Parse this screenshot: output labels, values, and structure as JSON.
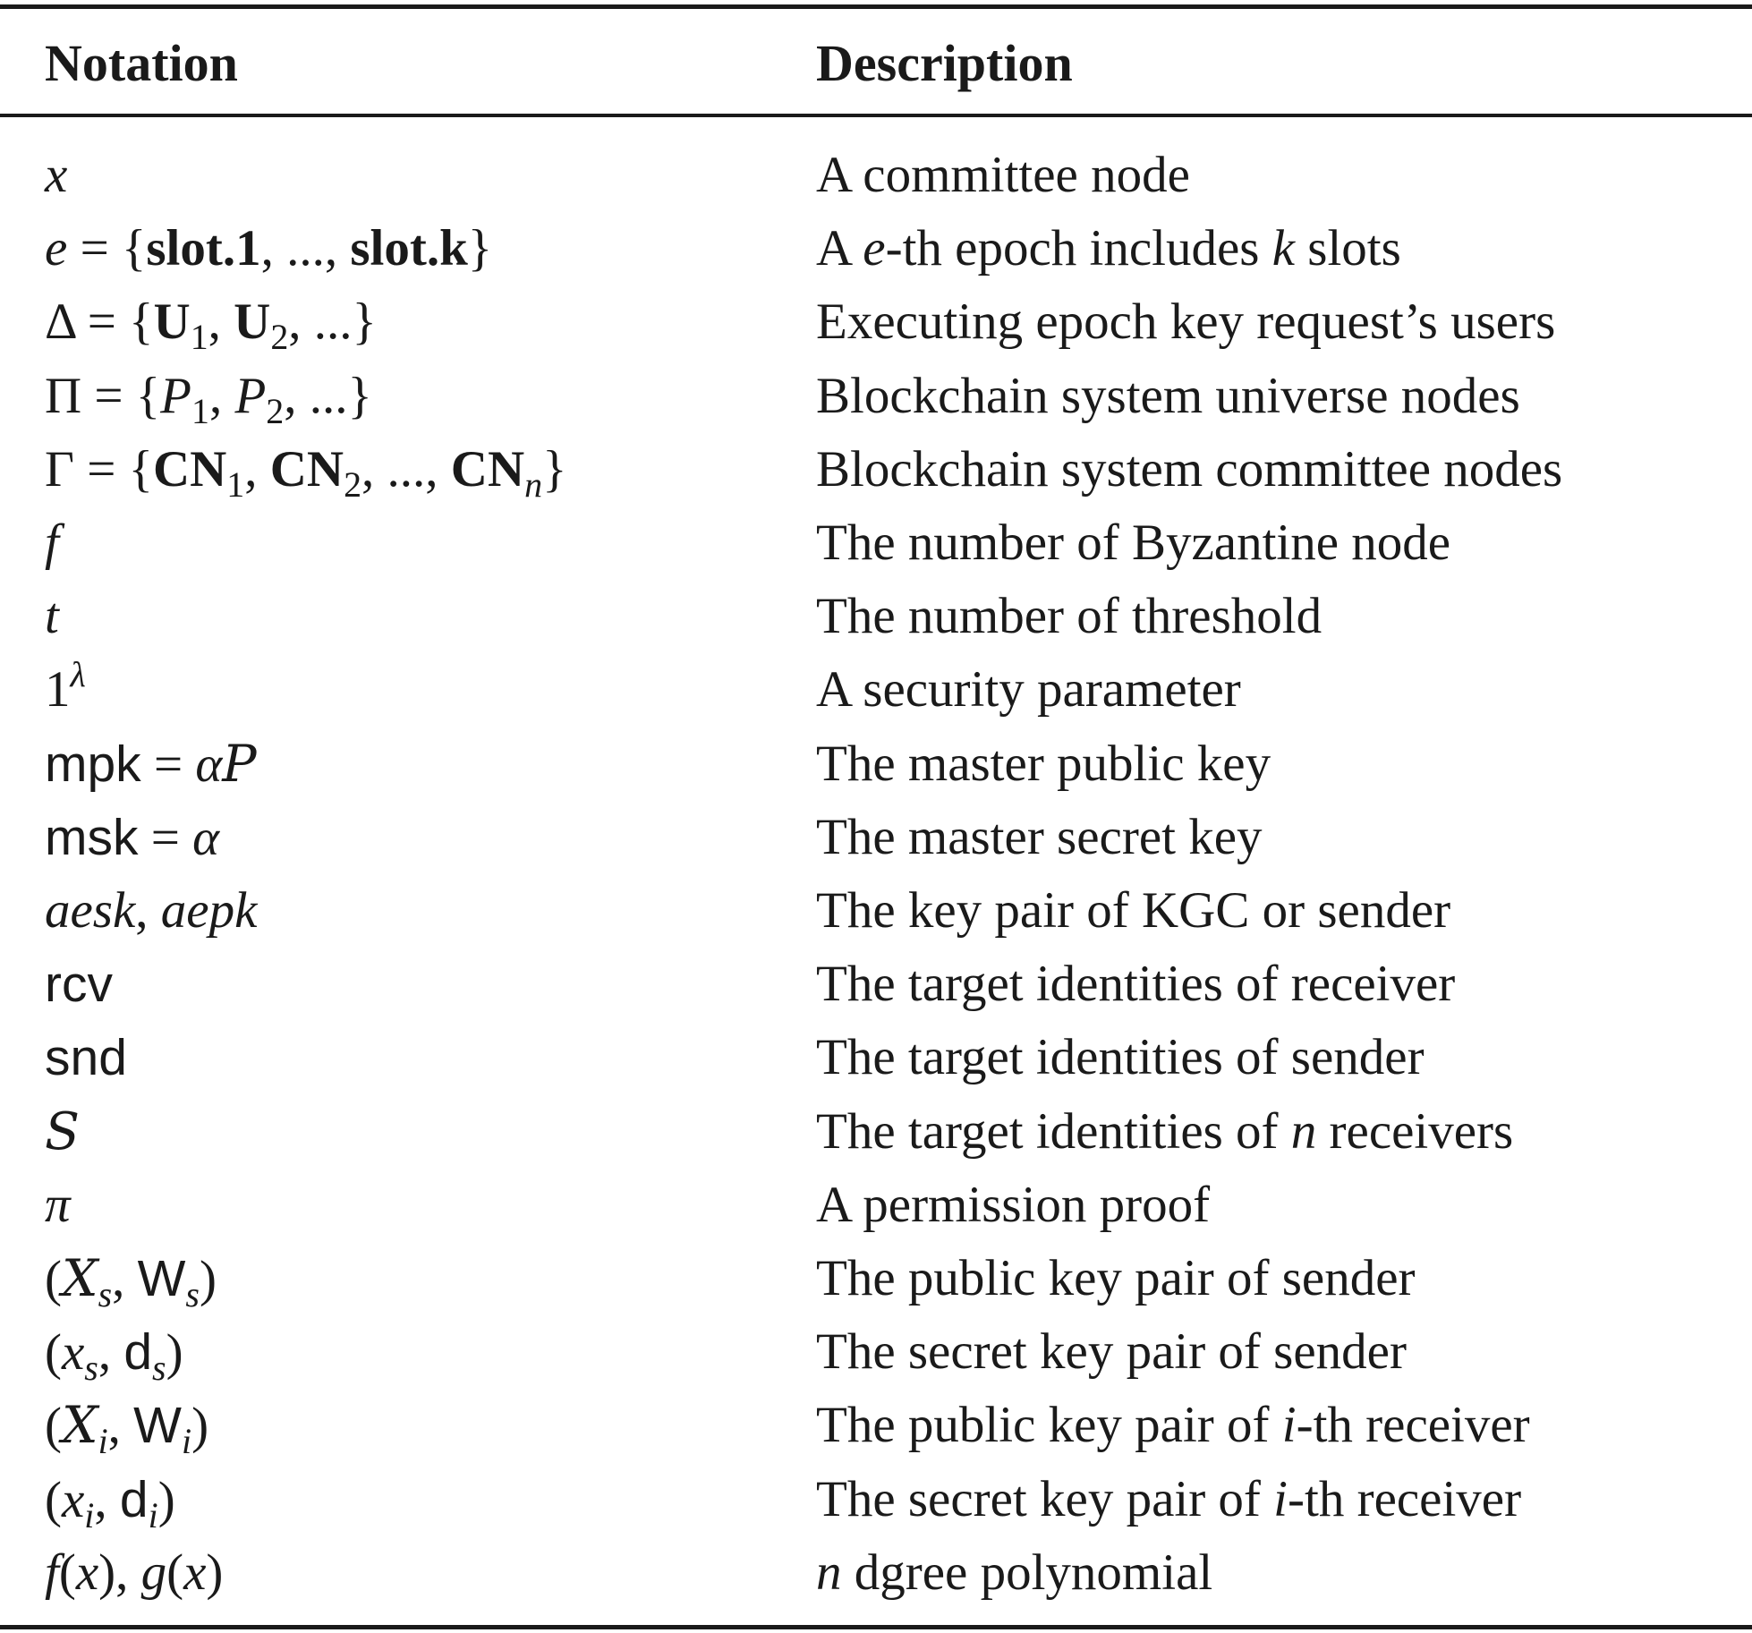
{
  "table": {
    "headers": {
      "notation": "Notation",
      "description": "Description"
    },
    "rows": [
      {
        "notation": [
          [
            "x",
            "i"
          ]
        ],
        "description": [
          [
            "A committee node",
            "r"
          ]
        ]
      },
      {
        "notation": [
          [
            "e",
            "i"
          ],
          [
            " = {",
            "r"
          ],
          [
            "slot.1",
            "b"
          ],
          [
            ", ..., ",
            "r"
          ],
          [
            "slot.k",
            "b"
          ],
          [
            "}",
            "r"
          ]
        ],
        "description": [
          [
            "A ",
            "r"
          ],
          [
            "e",
            "i"
          ],
          [
            "-th epoch includes ",
            "r"
          ],
          [
            "k",
            "i"
          ],
          [
            " slots",
            "r"
          ]
        ]
      },
      {
        "notation": [
          [
            "Δ = {",
            "r"
          ],
          [
            "U",
            "b"
          ],
          [
            "1",
            "sub"
          ],
          [
            ", ",
            "r"
          ],
          [
            "U",
            "b"
          ],
          [
            "2",
            "sub"
          ],
          [
            ", ...}",
            "r"
          ]
        ],
        "description": [
          [
            "Executing epoch key request’s users",
            "r"
          ]
        ]
      },
      {
        "notation": [
          [
            "Π = {",
            "r"
          ],
          [
            "P",
            "i"
          ],
          [
            "1",
            "sub"
          ],
          [
            ", ",
            "r"
          ],
          [
            "P",
            "i"
          ],
          [
            "2",
            "sub"
          ],
          [
            ", ...}",
            "r"
          ]
        ],
        "description": [
          [
            "Blockchain system universe nodes",
            "r"
          ]
        ]
      },
      {
        "notation": [
          [
            "Γ = {",
            "r"
          ],
          [
            "CN",
            "b"
          ],
          [
            "1",
            "sub"
          ],
          [
            ", ",
            "r"
          ],
          [
            "CN",
            "b"
          ],
          [
            "2",
            "sub"
          ],
          [
            ", ..., ",
            "r"
          ],
          [
            "CN",
            "b"
          ],
          [
            "n",
            "subi"
          ],
          [
            "}",
            "r"
          ]
        ],
        "description": [
          [
            "Blockchain system committee nodes",
            "r"
          ]
        ]
      },
      {
        "notation": [
          [
            "f",
            "i"
          ]
        ],
        "description": [
          [
            "The number of Byzantine node",
            "r"
          ]
        ]
      },
      {
        "notation": [
          [
            "t",
            "i"
          ]
        ],
        "description": [
          [
            "The number of threshold",
            "r"
          ]
        ]
      },
      {
        "notation": [
          [
            "1",
            "r"
          ],
          [
            "λ",
            "supi"
          ]
        ],
        "description": [
          [
            "A security parameter",
            "r"
          ]
        ]
      },
      {
        "notation": [
          [
            "mpk",
            "s"
          ],
          [
            " = ",
            "r"
          ],
          [
            "α",
            "i"
          ],
          [
            "P",
            "c"
          ]
        ],
        "description": [
          [
            "The master public key",
            "r"
          ]
        ]
      },
      {
        "notation": [
          [
            "msk",
            "s"
          ],
          [
            " = ",
            "r"
          ],
          [
            "α",
            "i"
          ]
        ],
        "description": [
          [
            "The master secret key",
            "r"
          ]
        ]
      },
      {
        "notation": [
          [
            "aesk",
            "i"
          ],
          [
            ", ",
            "r"
          ],
          [
            "aepk",
            "i"
          ]
        ],
        "description": [
          [
            "The key pair of KGC or sender",
            "r"
          ]
        ]
      },
      {
        "notation": [
          [
            "rcv",
            "s"
          ]
        ],
        "description": [
          [
            "The target identities of receiver",
            "r"
          ]
        ]
      },
      {
        "notation": [
          [
            "snd",
            "s"
          ]
        ],
        "description": [
          [
            "The target identities of sender",
            "r"
          ]
        ]
      },
      {
        "notation": [
          [
            "S",
            "c"
          ]
        ],
        "description": [
          [
            "The target identities of ",
            "r"
          ],
          [
            "n",
            "i"
          ],
          [
            " receivers",
            "r"
          ]
        ]
      },
      {
        "notation": [
          [
            "π",
            "i"
          ]
        ],
        "description": [
          [
            "A permission proof",
            "r"
          ]
        ]
      },
      {
        "notation": [
          [
            "(",
            "r"
          ],
          [
            "X",
            "c"
          ],
          [
            "s",
            "subi"
          ],
          [
            ", ",
            "r"
          ],
          [
            "W",
            "s"
          ],
          [
            "s",
            "subi"
          ],
          [
            ")",
            "r"
          ]
        ],
        "description": [
          [
            "The public key pair of sender",
            "r"
          ]
        ]
      },
      {
        "notation": [
          [
            "(",
            "r"
          ],
          [
            "x",
            "i"
          ],
          [
            "s",
            "subi"
          ],
          [
            ", ",
            "r"
          ],
          [
            "d",
            "s"
          ],
          [
            "s",
            "subi"
          ],
          [
            ")",
            "r"
          ]
        ],
        "description": [
          [
            "The secret key pair of sender",
            "r"
          ]
        ]
      },
      {
        "notation": [
          [
            "(",
            "r"
          ],
          [
            "X",
            "c"
          ],
          [
            "i",
            "subi"
          ],
          [
            ", ",
            "r"
          ],
          [
            "W",
            "s"
          ],
          [
            "i",
            "subi"
          ],
          [
            ")",
            "r"
          ]
        ],
        "description": [
          [
            "The public key pair of ",
            "r"
          ],
          [
            "i",
            "i"
          ],
          [
            "-th receiver",
            "r"
          ]
        ]
      },
      {
        "notation": [
          [
            "(",
            "r"
          ],
          [
            "x",
            "i"
          ],
          [
            "i",
            "subi"
          ],
          [
            ", ",
            "r"
          ],
          [
            "d",
            "s"
          ],
          [
            "i",
            "subi"
          ],
          [
            ")",
            "r"
          ]
        ],
        "description": [
          [
            "The secret key pair of ",
            "r"
          ],
          [
            "i",
            "i"
          ],
          [
            "-th receiver",
            "r"
          ]
        ]
      },
      {
        "notation": [
          [
            "f",
            "i"
          ],
          [
            "(",
            "r"
          ],
          [
            "x",
            "i"
          ],
          [
            "), ",
            "r"
          ],
          [
            "g",
            "i"
          ],
          [
            "(",
            "r"
          ],
          [
            "x",
            "i"
          ],
          [
            ")",
            "r"
          ]
        ],
        "description": [
          [
            "n",
            "i"
          ],
          [
            " dgree polynomial",
            "r"
          ]
        ]
      }
    ]
  }
}
